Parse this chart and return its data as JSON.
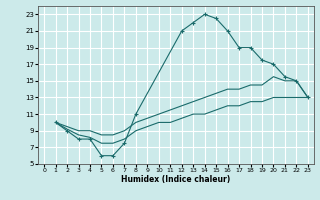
{
  "xlabel": "Humidex (Indice chaleur)",
  "bg_color": "#cceaea",
  "grid_color": "#ffffff",
  "line_color": "#1a6b6b",
  "xlim": [
    -0.5,
    23.5
  ],
  "ylim": [
    5,
    24
  ],
  "xticks": [
    0,
    1,
    2,
    3,
    4,
    5,
    6,
    7,
    8,
    9,
    10,
    11,
    12,
    13,
    14,
    15,
    16,
    17,
    18,
    19,
    20,
    21,
    22,
    23
  ],
  "yticks": [
    5,
    7,
    9,
    11,
    13,
    15,
    17,
    19,
    21,
    23
  ],
  "series1_x": [
    1,
    2,
    3,
    4,
    5,
    6,
    7,
    8,
    12,
    13,
    14,
    15,
    16,
    17,
    18,
    19,
    20,
    21,
    22,
    23
  ],
  "series1_y": [
    10,
    9,
    8,
    8,
    6,
    6,
    7.5,
    11,
    21,
    22,
    23,
    22.5,
    21,
    19,
    19,
    17.5,
    17,
    15.5,
    15,
    13
  ],
  "series2_x": [
    1,
    2,
    3,
    4,
    5,
    6,
    7,
    8,
    9,
    10,
    11,
    12,
    13,
    14,
    15,
    16,
    17,
    18,
    19,
    20,
    21,
    22,
    23
  ],
  "series2_y": [
    10,
    9.5,
    9,
    9,
    8.5,
    8.5,
    9,
    10,
    10.5,
    11,
    11.5,
    12,
    12.5,
    13,
    13.5,
    14,
    14,
    14.5,
    14.5,
    15.5,
    15,
    15,
    13
  ],
  "series3_x": [
    1,
    2,
    3,
    4,
    5,
    6,
    7,
    8,
    9,
    10,
    11,
    12,
    13,
    14,
    15,
    16,
    17,
    18,
    19,
    20,
    21,
    22,
    23
  ],
  "series3_y": [
    10,
    9.2,
    8.5,
    8.2,
    7.5,
    7.5,
    8,
    9,
    9.5,
    10,
    10,
    10.5,
    11,
    11,
    11.5,
    12,
    12,
    12.5,
    12.5,
    13,
    13,
    13,
    13
  ]
}
